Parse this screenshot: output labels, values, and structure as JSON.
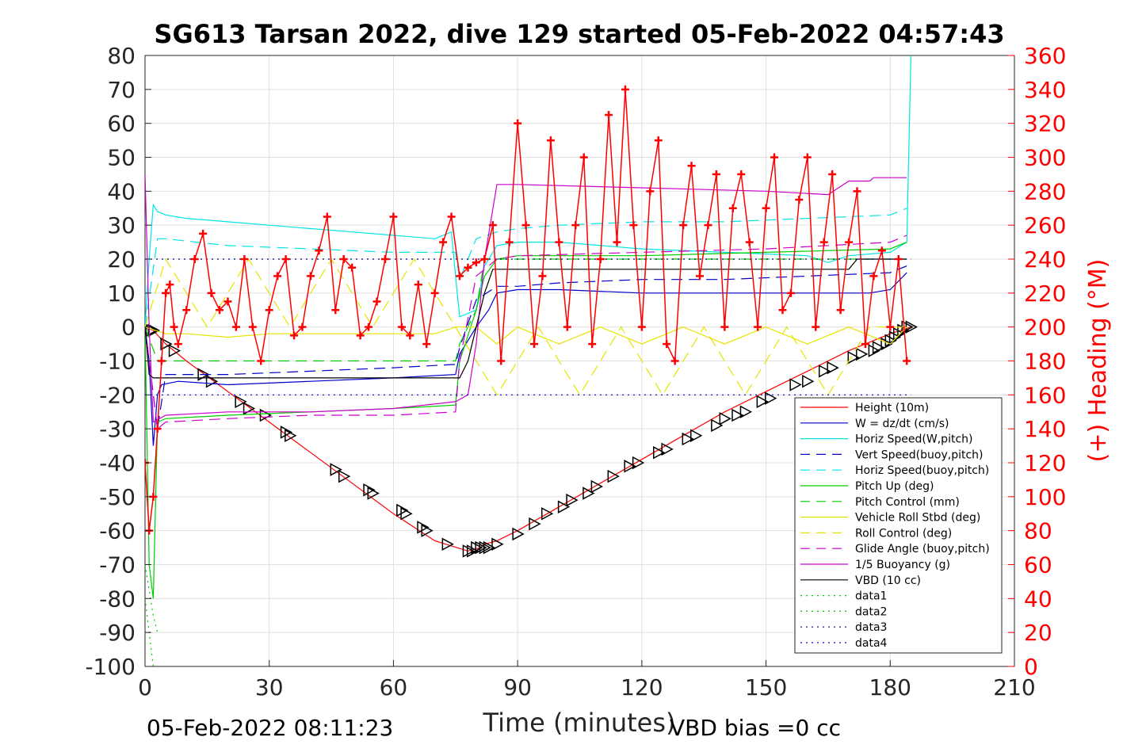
{
  "chart_data": {
    "type": "line",
    "title": "SG613 Tarsan 2022, dive 129 started 05-Feb-2022 04:57:43",
    "xlabel": "Time (minutes)",
    "ylabel_right": "(+) Heading (°M)",
    "footer_left": "05-Feb-2022 08:11:23",
    "footer_right": "VBD bias =0 cc",
    "xlim": [
      0,
      210
    ],
    "ylim_left": [
      -100,
      80
    ],
    "ylim_right": [
      0,
      360
    ],
    "grid": true,
    "legend_position": "bottom-right",
    "x_ticks": [
      "0",
      "30",
      "60",
      "90",
      "120",
      "150",
      "180",
      "210"
    ],
    "y_ticks_left": [
      "80",
      "70",
      "60",
      "50",
      "40",
      "30",
      "20",
      "10",
      "0",
      "-10",
      "-20",
      "-30",
      "-40",
      "-50",
      "-60",
      "-70",
      "-80",
      "-90",
      "-100"
    ],
    "y_ticks_right": [
      "360",
      "340",
      "320",
      "300",
      "280",
      "260",
      "240",
      "220",
      "200",
      "180",
      "160",
      "140",
      "120",
      "100",
      "80",
      "60",
      "40",
      "20",
      "0"
    ],
    "legend": [
      {
        "label": "Height (10m)",
        "color": "#ff0000",
        "dash": "solid"
      },
      {
        "label": "W = dz/dt (cm/s)",
        "color": "#0000cc",
        "dash": "solid"
      },
      {
        "label": "Horiz Speed(W,pitch)",
        "color": "#00e5e5",
        "dash": "solid"
      },
      {
        "label": "Vert Speed(buoy,pitch)",
        "color": "#0000cc",
        "dash": "dashed"
      },
      {
        "label": "Horiz Speed(buoy,pitch)",
        "color": "#00e5e5",
        "dash": "dashed"
      },
      {
        "label": "Pitch Up (deg)",
        "color": "#00cc00",
        "dash": "solid"
      },
      {
        "label": "Pitch Control (mm)",
        "color": "#00cc00",
        "dash": "dashed"
      },
      {
        "label": "Vehicle Roll Stbd (deg)",
        "color": "#e5e500",
        "dash": "solid"
      },
      {
        "label": "Roll Control (deg)",
        "color": "#e5e500",
        "dash": "dashed"
      },
      {
        "label": "Glide Angle (buoy,pitch)",
        "color": "#cc00cc",
        "dash": "dashed"
      },
      {
        "label": "1/5 Buoyancy (g)",
        "color": "#cc00cc",
        "dash": "solid"
      },
      {
        "label": "VBD (10 cc)",
        "color": "#000000",
        "dash": "solid"
      },
      {
        "label": "data1",
        "color": "#00cc00",
        "dash": "dotted"
      },
      {
        "label": "data2",
        "color": "#00cc00",
        "dash": "dotted"
      },
      {
        "label": "data3",
        "color": "#000080",
        "dash": "dotted"
      },
      {
        "label": "data4",
        "color": "#0000cc",
        "dash": "dotted"
      }
    ],
    "series": [
      {
        "name": "Height (10m)",
        "axis": "left",
        "color": "#ff0000",
        "dash": "solid",
        "x": [
          0,
          2,
          5,
          10,
          20,
          30,
          40,
          50,
          60,
          70,
          78,
          81,
          82,
          85,
          90,
          100,
          110,
          120,
          130,
          140,
          150,
          160,
          170,
          180,
          185
        ],
        "y": [
          0,
          -1,
          -5,
          -10,
          -19,
          -28,
          -37,
          -46,
          -55,
          -63,
          -66,
          -65,
          -64,
          -63,
          -60,
          -53,
          -46,
          -39,
          -32,
          -25,
          -19,
          -13,
          -7,
          -2,
          0
        ]
      },
      {
        "name": "Height markers",
        "axis": "left",
        "marker": "triangle",
        "color": "#000000",
        "x": [
          1.5,
          2,
          5,
          7,
          14,
          16,
          23,
          25,
          29,
          34,
          35,
          46,
          48,
          54,
          55,
          62,
          63,
          67,
          68,
          73,
          78,
          79,
          80,
          81,
          82,
          83,
          85,
          90,
          94,
          97,
          101,
          103,
          107,
          109,
          113,
          117,
          119,
          124,
          126,
          131,
          133,
          138,
          140,
          143,
          145,
          149,
          151,
          157,
          160,
          164,
          166,
          171,
          173,
          176,
          177,
          179,
          180,
          181,
          182,
          183,
          184,
          185
        ],
        "y": [
          -1,
          -1,
          -5,
          -7,
          -14,
          -16,
          -22,
          -24,
          -26,
          -31,
          -32,
          -42,
          -44,
          -48,
          -49,
          -54,
          -55,
          -59,
          -60,
          -64,
          -66,
          -66,
          -65,
          -65,
          -65,
          -65,
          -64,
          -61,
          -58,
          -55,
          -53,
          -51,
          -49,
          -47,
          -44,
          -41,
          -40,
          -37,
          -36,
          -33,
          -32,
          -29,
          -27,
          -26,
          -25,
          -22,
          -21,
          -17,
          -16,
          -13,
          -12,
          -9,
          -8,
          -7,
          -6,
          -5,
          -4,
          -3,
          -2,
          -1,
          0,
          0
        ]
      },
      {
        "name": "W = dz/dt (cm/s)",
        "axis": "left",
        "color": "#0000cc",
        "dash": "solid",
        "x": [
          0,
          1,
          2,
          3,
          4,
          8,
          20,
          40,
          60,
          75,
          76,
          80,
          83,
          85,
          90,
          100,
          120,
          140,
          160,
          170,
          175,
          180,
          184
        ],
        "y": [
          0,
          -10,
          -35,
          -20,
          -17,
          -16,
          -17,
          -16,
          -15,
          -14,
          -8,
          0,
          5,
          10,
          11,
          11,
          10,
          10,
          10,
          10,
          10,
          11,
          16
        ]
      },
      {
        "name": "Horiz Speed(W,pitch)",
        "axis": "left",
        "color": "#00e5e5",
        "dash": "solid",
        "x": [
          0,
          1,
          2,
          3,
          5,
          10,
          20,
          30,
          40,
          50,
          60,
          70,
          74,
          75,
          76,
          80,
          82,
          85,
          90,
          100,
          120,
          140,
          160,
          165,
          170,
          180,
          184,
          185
        ],
        "y": [
          0,
          20,
          36,
          34,
          33,
          32,
          31,
          30,
          29,
          28,
          27,
          26,
          28,
          15,
          3,
          5,
          18,
          24,
          25,
          25,
          23,
          22,
          21,
          19,
          21,
          22,
          25,
          80
        ]
      },
      {
        "name": "Vert Speed(buoy,pitch)",
        "axis": "left",
        "color": "#0000cc",
        "dash": "dashed",
        "x": [
          0,
          3,
          5,
          20,
          40,
          60,
          75,
          76,
          80,
          85,
          90,
          100,
          120,
          140,
          160,
          180,
          184
        ],
        "y": [
          0,
          -30,
          -14,
          -14,
          -13,
          -12,
          -11,
          -6,
          8,
          12,
          12,
          13,
          14,
          14,
          15,
          16,
          18
        ]
      },
      {
        "name": "Horiz Speed(buoy,pitch)",
        "axis": "left",
        "color": "#00e5e5",
        "dash": "dashed",
        "x": [
          0,
          3,
          5,
          20,
          40,
          60,
          75,
          76,
          80,
          85,
          90,
          100,
          120,
          140,
          160,
          180,
          184
        ],
        "y": [
          0,
          26,
          26,
          24,
          23,
          22,
          22,
          14,
          26,
          28,
          29,
          30,
          31,
          31,
          32,
          33,
          35
        ]
      },
      {
        "name": "Pitch Up (deg)",
        "axis": "left",
        "color": "#00cc00",
        "dash": "solid",
        "x": [
          0,
          1,
          2,
          3,
          5,
          20,
          40,
          60,
          75,
          76,
          80,
          82,
          85,
          90,
          120,
          150,
          180,
          184
        ],
        "y": [
          0,
          -70,
          -80,
          -28,
          -27,
          -26,
          -25,
          -24,
          -23,
          -10,
          5,
          15,
          20,
          21,
          21,
          22,
          23,
          25
        ]
      },
      {
        "name": "Pitch Control (mm)",
        "axis": "left",
        "color": "#00cc00",
        "dash": "dashed",
        "x": [
          0,
          3,
          75,
          76,
          80,
          82,
          184
        ],
        "y": [
          0,
          -10,
          -10,
          -5,
          5,
          20,
          20
        ]
      },
      {
        "name": "Vehicle Roll Stbd (deg)",
        "axis": "left",
        "color": "#e5e500",
        "dash": "solid",
        "x": [
          0,
          5,
          10,
          20,
          30,
          40,
          50,
          60,
          70,
          75,
          80,
          85,
          90,
          100,
          110,
          120,
          130,
          140,
          150,
          160,
          170,
          180,
          184
        ],
        "y": [
          0,
          -2,
          -2,
          -3,
          -2,
          -2,
          -2,
          -2,
          -2,
          0,
          0,
          -5,
          0,
          -5,
          0,
          -5,
          0,
          -5,
          0,
          -5,
          0,
          -5,
          0
        ]
      },
      {
        "name": "Roll Control (deg)",
        "axis": "left",
        "color": "#e5e500",
        "dash": "dashed",
        "x": [
          0,
          5,
          15,
          25,
          35,
          45,
          55,
          65,
          75,
          85,
          95,
          105,
          115,
          125,
          135,
          145,
          155,
          165,
          175,
          184
        ],
        "y": [
          0,
          20,
          0,
          20,
          0,
          20,
          0,
          20,
          0,
          -20,
          0,
          -20,
          0,
          -20,
          0,
          -20,
          0,
          -20,
          0,
          0
        ]
      },
      {
        "name": "Glide Angle (buoy,pitch)",
        "axis": "left",
        "color": "#cc00cc",
        "dash": "dashed",
        "x": [
          0,
          3,
          5,
          20,
          40,
          60,
          75,
          76,
          80,
          85,
          90,
          120,
          150,
          180,
          184
        ],
        "y": [
          0,
          -30,
          -28,
          -27,
          -26,
          -26,
          -25,
          -10,
          15,
          20,
          21,
          22,
          23,
          25,
          27
        ]
      },
      {
        "name": "1/5 Buoyancy (g)",
        "axis": "left",
        "color": "#cc00cc",
        "dash": "solid",
        "x": [
          0,
          1,
          2,
          5,
          20,
          40,
          60,
          75,
          78,
          80,
          82,
          85,
          90,
          120,
          150,
          165,
          170,
          175,
          176,
          180,
          184
        ],
        "y": [
          45,
          0,
          -28,
          -26,
          -25,
          -25,
          -24,
          -22,
          -20,
          -5,
          20,
          42,
          42,
          41,
          40,
          39,
          43,
          43,
          44,
          44,
          44
        ]
      },
      {
        "name": "VBD (10 cc)",
        "axis": "left",
        "color": "#000000",
        "dash": "solid",
        "x": [
          0,
          1,
          2,
          3,
          10,
          40,
          70,
          76,
          78,
          80,
          82,
          84,
          90,
          120,
          150,
          170,
          172,
          175,
          184
        ],
        "y": [
          0,
          -14,
          -15,
          -15,
          -15,
          -15,
          -15,
          -15,
          -10,
          0,
          10,
          17,
          17,
          17,
          17,
          17,
          20,
          20,
          20
        ]
      },
      {
        "name": "data1",
        "axis": "left",
        "color": "#00cc00",
        "dash": "dotted",
        "x": [
          0,
          2,
          3
        ],
        "y": [
          -70,
          -85,
          -90
        ]
      },
      {
        "name": "data2",
        "axis": "left",
        "color": "#00cc00",
        "dash": "dotted",
        "x": [
          0,
          2
        ],
        "y": [
          -80,
          -100
        ]
      },
      {
        "name": "data3",
        "axis": "left",
        "color": "#000080",
        "dash": "dotted",
        "x": [
          0,
          185
        ],
        "y": [
          20,
          20
        ]
      },
      {
        "name": "data4",
        "axis": "left",
        "color": "#0000cc",
        "dash": "dotted",
        "x": [
          0,
          185
        ],
        "y": [
          -20,
          -20
        ]
      },
      {
        "name": "(+) Heading (°M)",
        "axis": "right",
        "color": "#ff0000",
        "marker": "plus",
        "x": [
          0,
          1,
          2,
          3,
          4,
          5,
          6,
          7,
          8,
          10,
          12,
          14,
          16,
          18,
          20,
          22,
          24,
          26,
          28,
          30,
          32,
          34,
          36,
          38,
          40,
          42,
          44,
          46,
          48,
          50,
          52,
          54,
          56,
          58,
          60,
          62,
          64,
          66,
          68,
          70,
          72,
          74,
          76,
          78,
          80,
          82,
          84,
          86,
          88,
          90,
          92,
          94,
          96,
          98,
          100,
          102,
          104,
          106,
          108,
          110,
          112,
          114,
          116,
          118,
          120,
          122,
          124,
          126,
          128,
          130,
          132,
          134,
          136,
          138,
          140,
          142,
          144,
          146,
          148,
          150,
          152,
          154,
          156,
          158,
          160,
          162,
          164,
          166,
          168,
          170,
          172,
          174,
          176,
          178,
          180,
          182,
          184
        ],
        "y": [
          120,
          80,
          100,
          140,
          180,
          220,
          225,
          200,
          190,
          210,
          240,
          255,
          220,
          210,
          215,
          200,
          240,
          200,
          180,
          210,
          230,
          240,
          195,
          200,
          230,
          245,
          265,
          210,
          240,
          235,
          195,
          200,
          215,
          240,
          265,
          200,
          195,
          225,
          190,
          220,
          250,
          265,
          230,
          235,
          238,
          240,
          260,
          180,
          250,
          320,
          260,
          190,
          230,
          310,
          250,
          200,
          260,
          300,
          190,
          240,
          325,
          250,
          340,
          260,
          200,
          280,
          310,
          190,
          180,
          260,
          295,
          230,
          260,
          290,
          200,
          270,
          290,
          250,
          200,
          270,
          300,
          210,
          220,
          275,
          300,
          200,
          250,
          290,
          210,
          250,
          280,
          190,
          230,
          245,
          200,
          240,
          180
        ]
      }
    ]
  }
}
